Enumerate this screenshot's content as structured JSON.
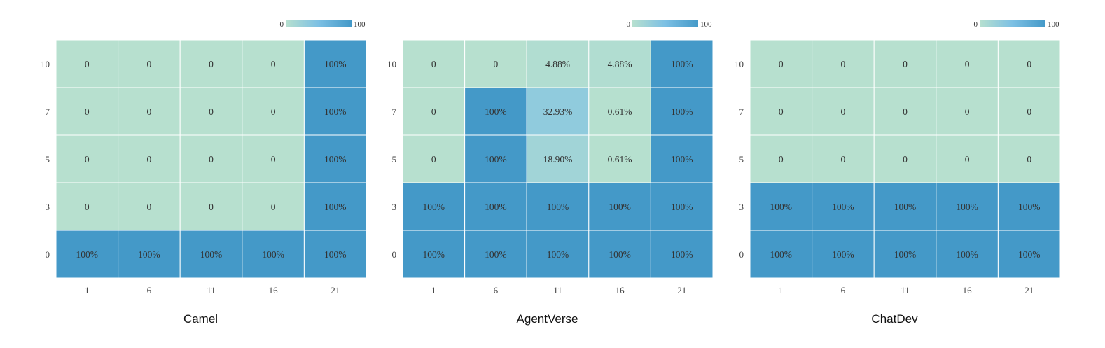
{
  "colorbar": {
    "min_label": "0",
    "max_label": "100"
  },
  "colors": {
    "low": "#b7e0cf",
    "mid": "#7cc0e4",
    "high": "#4499c8",
    "grid": "#ffffff"
  },
  "chart_data": [
    {
      "type": "heatmap",
      "title": "Camel",
      "x_categories": [
        "1",
        "6",
        "11",
        "16",
        "21"
      ],
      "y_categories": [
        "10",
        "7",
        "5",
        "3",
        "0"
      ],
      "vmin": 0,
      "vmax": 100,
      "values": [
        [
          0,
          0,
          0,
          0,
          100
        ],
        [
          0,
          0,
          0,
          0,
          100
        ],
        [
          0,
          0,
          0,
          0,
          100
        ],
        [
          0,
          0,
          0,
          0,
          100
        ],
        [
          100,
          100,
          100,
          100,
          100
        ]
      ],
      "labels": [
        [
          "0",
          "0",
          "0",
          "0",
          "100%"
        ],
        [
          "0",
          "0",
          "0",
          "0",
          "100%"
        ],
        [
          "0",
          "0",
          "0",
          "0",
          "100%"
        ],
        [
          "0",
          "0",
          "0",
          "0",
          "100%"
        ],
        [
          "100%",
          "100%",
          "100%",
          "100%",
          "100%"
        ]
      ]
    },
    {
      "type": "heatmap",
      "title": "AgentVerse",
      "x_categories": [
        "1",
        "6",
        "11",
        "16",
        "21"
      ],
      "y_categories": [
        "10",
        "7",
        "5",
        "3",
        "0"
      ],
      "vmin": 0,
      "vmax": 100,
      "values": [
        [
          0,
          0,
          4.88,
          4.88,
          100
        ],
        [
          0,
          100,
          32.93,
          0.61,
          100
        ],
        [
          0,
          100,
          18.9,
          0.61,
          100
        ],
        [
          100,
          100,
          100,
          100,
          100
        ],
        [
          100,
          100,
          100,
          100,
          100
        ]
      ],
      "labels": [
        [
          "0",
          "0",
          "4.88%",
          "4.88%",
          "100%"
        ],
        [
          "0",
          "100%",
          "32.93%",
          "0.61%",
          "100%"
        ],
        [
          "0",
          "100%",
          "18.90%",
          "0.61%",
          "100%"
        ],
        [
          "100%",
          "100%",
          "100%",
          "100%",
          "100%"
        ],
        [
          "100%",
          "100%",
          "100%",
          "100%",
          "100%"
        ]
      ]
    },
    {
      "type": "heatmap",
      "title": "ChatDev",
      "x_categories": [
        "1",
        "6",
        "11",
        "16",
        "21"
      ],
      "y_categories": [
        "10",
        "7",
        "5",
        "3",
        "0"
      ],
      "vmin": 0,
      "vmax": 100,
      "values": [
        [
          0,
          0,
          0,
          0,
          0
        ],
        [
          0,
          0,
          0,
          0,
          0
        ],
        [
          0,
          0,
          0,
          0,
          0
        ],
        [
          100,
          100,
          100,
          100,
          100
        ],
        [
          100,
          100,
          100,
          100,
          100
        ]
      ],
      "labels": [
        [
          "0",
          "0",
          "0",
          "0",
          "0"
        ],
        [
          "0",
          "0",
          "0",
          "0",
          "0"
        ],
        [
          "0",
          "0",
          "0",
          "0",
          "0"
        ],
        [
          "100%",
          "100%",
          "100%",
          "100%",
          "100%"
        ],
        [
          "100%",
          "100%",
          "100%",
          "100%",
          "100%"
        ]
      ]
    }
  ]
}
